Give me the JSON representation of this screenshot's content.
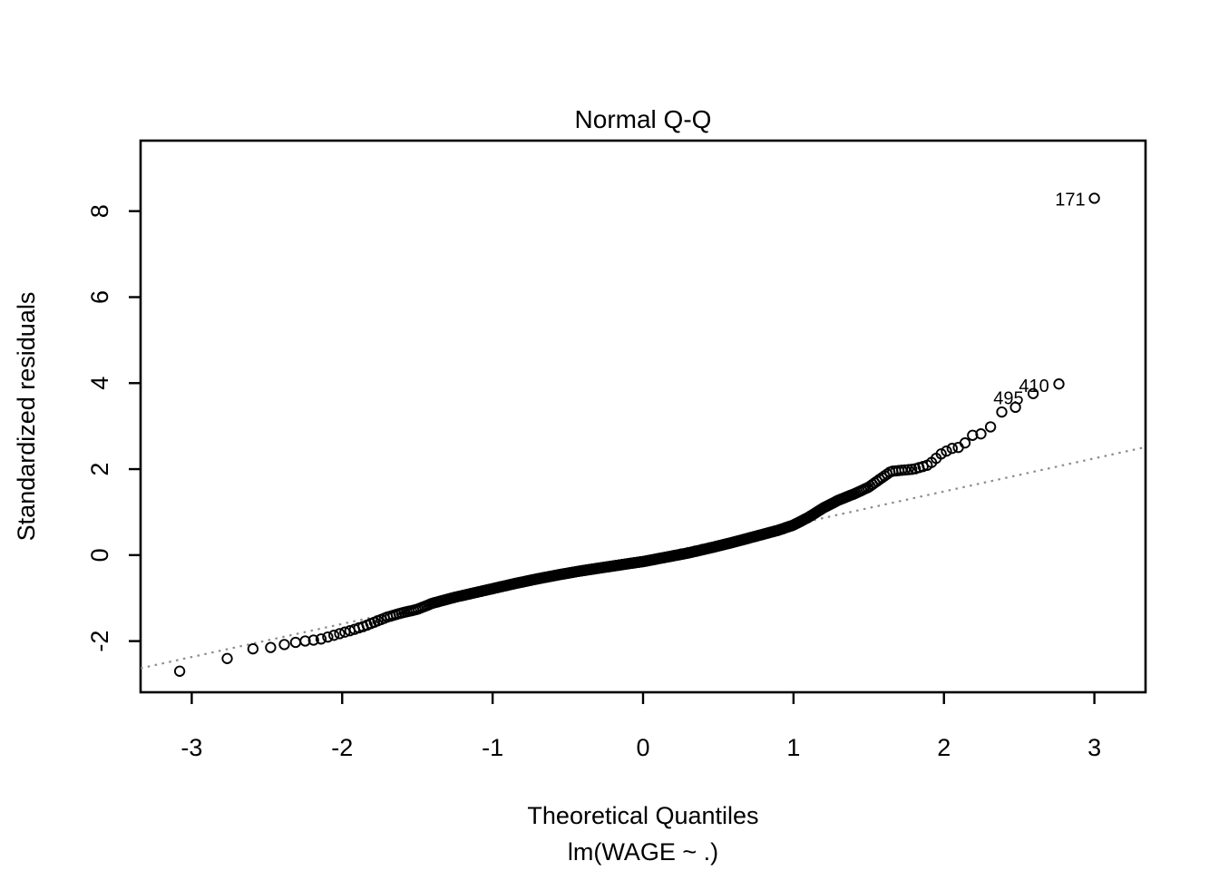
{
  "title": "Normal Q-Q",
  "chart_data": {
    "type": "scatter",
    "title": "Normal Q-Q",
    "xlabel": "Theoretical Quantiles",
    "xlabel_sub": "lm(WAGE ~ .)",
    "ylabel": "Standardized residuals",
    "xlim": [
      -3.34,
      3.34
    ],
    "ylim": [
      -3.19,
      9.64
    ],
    "x_ticks": [
      -3,
      -2,
      -1,
      0,
      1,
      2,
      3
    ],
    "y_ticks": [
      -2,
      0,
      2,
      4,
      6,
      8
    ],
    "grid": false,
    "legend": "none",
    "marker": "open-circle",
    "marker_color": "#000000",
    "background_color": "#ffffff",
    "axis_color": "#000000",
    "n_points": 526,
    "quantile_curve_knots": [
      [
        -3.08,
        -2.7
      ],
      [
        -2.76,
        -2.4
      ],
      [
        -2.6,
        -2.18
      ],
      [
        -2.45,
        -2.14
      ],
      [
        -2.35,
        -2.05
      ],
      [
        -2.25,
        -2.0
      ],
      [
        -2.15,
        -1.96
      ],
      [
        -2.05,
        -1.86
      ],
      [
        -1.95,
        -1.76
      ],
      [
        -1.85,
        -1.65
      ],
      [
        -1.7,
        -1.44
      ],
      [
        -1.6,
        -1.34
      ],
      [
        -1.5,
        -1.26
      ],
      [
        -1.4,
        -1.12
      ],
      [
        -1.25,
        -0.98
      ],
      [
        -1.1,
        -0.86
      ],
      [
        -1.0,
        -0.78
      ],
      [
        -0.85,
        -0.66
      ],
      [
        -0.7,
        -0.55
      ],
      [
        -0.55,
        -0.45
      ],
      [
        -0.4,
        -0.36
      ],
      [
        -0.25,
        -0.28
      ],
      [
        -0.1,
        -0.2
      ],
      [
        0.0,
        -0.15
      ],
      [
        0.15,
        -0.05
      ],
      [
        0.3,
        0.05
      ],
      [
        0.45,
        0.17
      ],
      [
        0.6,
        0.3
      ],
      [
        0.75,
        0.44
      ],
      [
        0.9,
        0.58
      ],
      [
        1.0,
        0.7
      ],
      [
        1.1,
        0.88
      ],
      [
        1.2,
        1.1
      ],
      [
        1.3,
        1.28
      ],
      [
        1.4,
        1.42
      ],
      [
        1.5,
        1.58
      ],
      [
        1.58,
        1.78
      ],
      [
        1.65,
        1.95
      ],
      [
        1.8,
        2.0
      ],
      [
        1.9,
        2.1
      ],
      [
        1.98,
        2.35
      ],
      [
        2.05,
        2.48
      ],
      [
        2.12,
        2.52
      ],
      [
        2.18,
        2.78
      ],
      [
        2.28,
        2.84
      ],
      [
        2.33,
        3.08
      ],
      [
        2.4,
        3.4
      ],
      [
        2.48,
        3.44
      ],
      [
        2.55,
        3.72
      ],
      [
        2.76,
        3.9
      ],
      [
        3.0,
        8.3
      ]
    ],
    "reference_line": {
      "style": "dotted",
      "color": "#8c8c8c",
      "slope": 0.77,
      "intercept": -0.06,
      "x_start": -3.34,
      "x_end": 3.34
    },
    "labeled_points": [
      {
        "label": "171",
        "x": 3.0,
        "y": 8.3
      },
      {
        "label": "410",
        "x": 2.76,
        "y": 3.9
      },
      {
        "label": "495",
        "x": 2.59,
        "y": 3.74
      }
    ]
  }
}
